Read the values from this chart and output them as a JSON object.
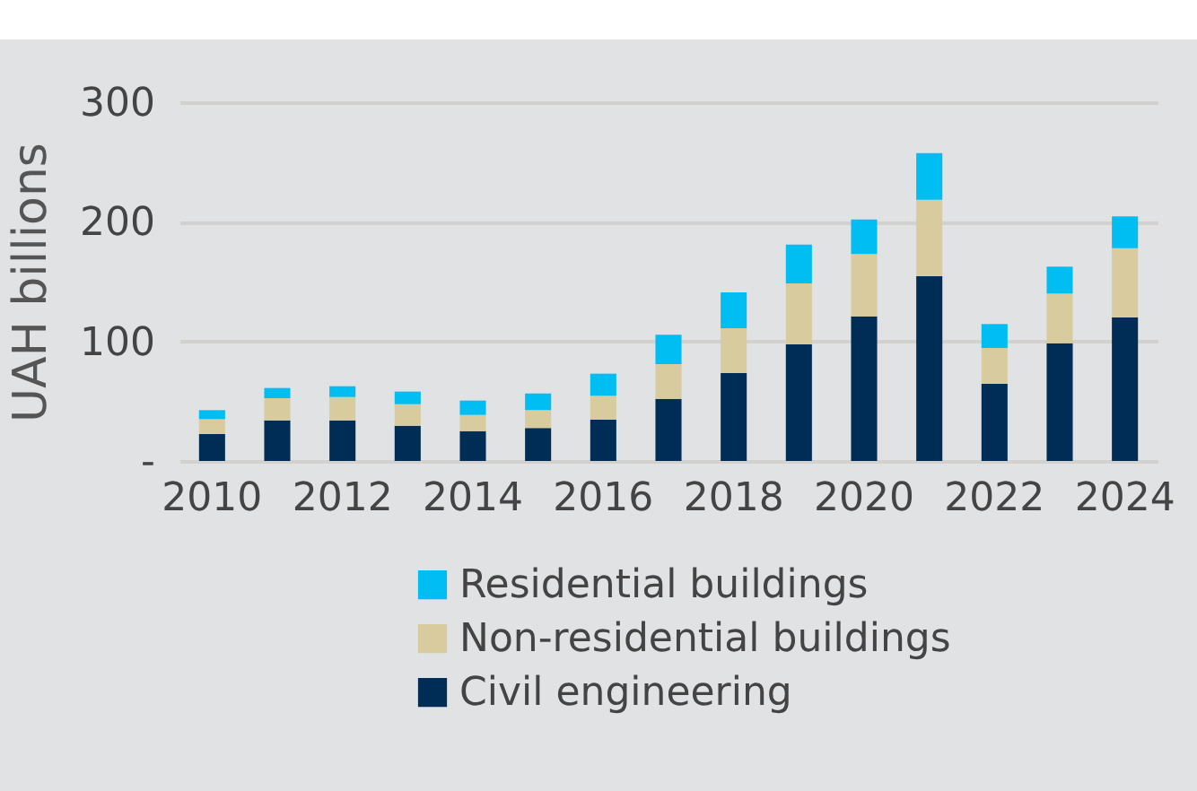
{
  "chart_data": {
    "type": "bar",
    "stacked": true,
    "ylabel": "UAH billions",
    "categories": [
      "2010",
      null,
      "2012",
      null,
      "2014",
      null,
      "2016",
      null,
      "2018",
      null,
      "2020",
      null,
      "2022",
      null,
      "2024"
    ],
    "series": [
      {
        "name": "Civil engineering",
        "color": "#002d55",
        "values": [
          22.5,
          34,
          34,
          29.5,
          25,
          27.5,
          34.5,
          52,
          73.5,
          97.5,
          121,
          154.5,
          64.5,
          98.5,
          120
        ]
      },
      {
        "name": "Non-residential buildings",
        "color": "#d8cb9e",
        "values": [
          12.5,
          18.5,
          19.5,
          18,
          13.5,
          15,
          20,
          29,
          37.5,
          51,
          52,
          64,
          30,
          41.5,
          58
        ]
      },
      {
        "name": "Residential buildings",
        "color": "#00bdf2",
        "values": [
          7.5,
          8.5,
          9,
          10.5,
          12,
          14,
          18.5,
          24.5,
          30,
          32.5,
          29,
          39,
          20,
          22.5,
          26.5
        ]
      }
    ],
    "ylim": [
      0,
      300
    ],
    "yticks": [
      {
        "value": 0,
        "label": "-"
      },
      100,
      200,
      300
    ],
    "grid": "y",
    "legend": "bottom"
  }
}
